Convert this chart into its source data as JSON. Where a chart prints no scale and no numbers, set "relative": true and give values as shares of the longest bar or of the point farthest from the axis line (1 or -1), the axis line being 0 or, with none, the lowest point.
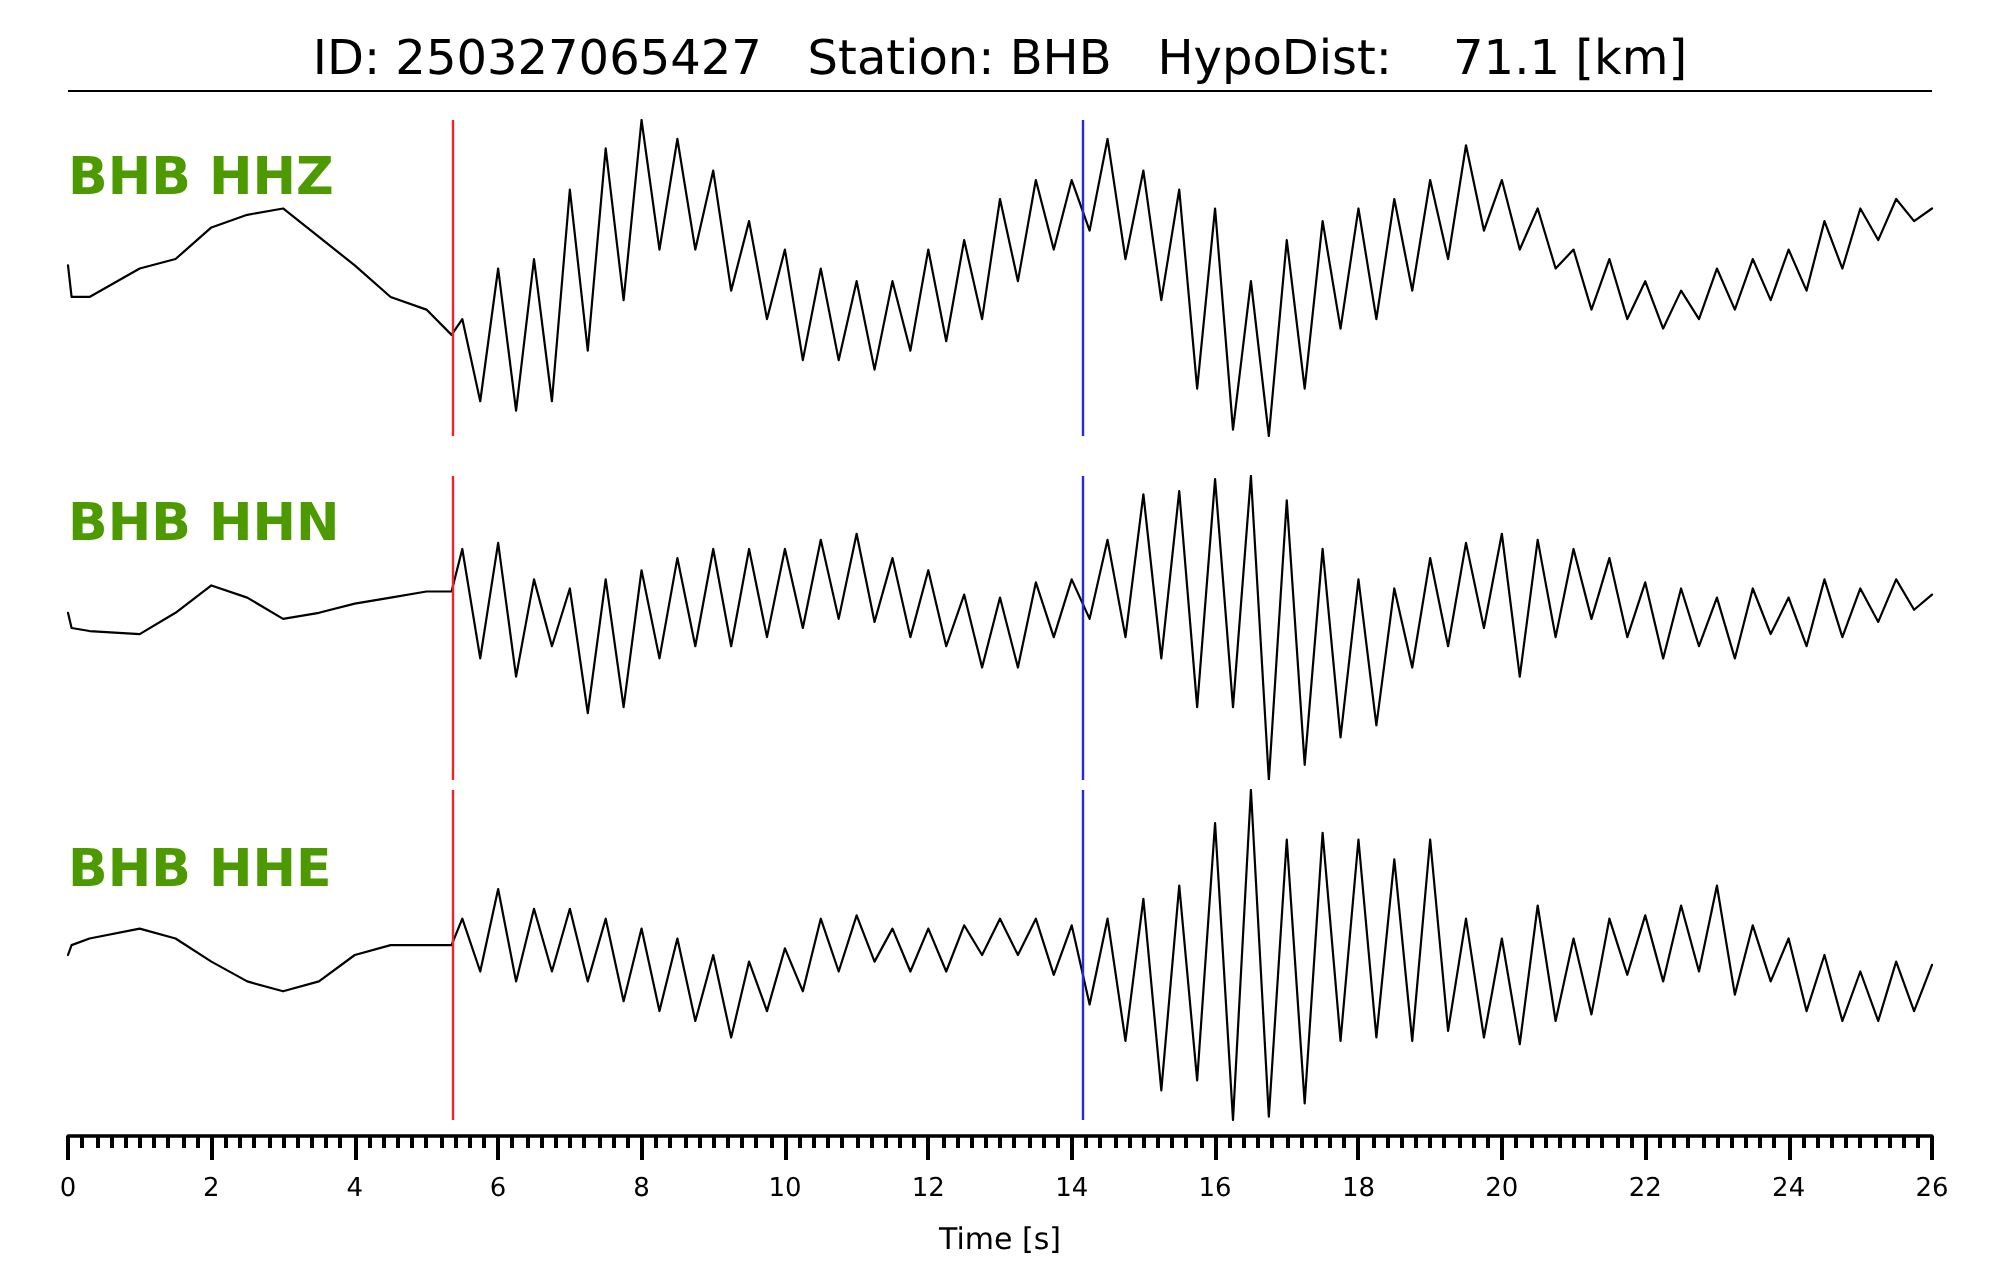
{
  "chart_data": [
    {
      "type": "line",
      "title": "ID: 250327065427   Station: BHB   HypoDist:    71.1 [km]",
      "relative": true,
      "xlim": [
        0,
        26
      ],
      "x": [
        0,
        0.05,
        0.3,
        1,
        1.5,
        2,
        2.5,
        3,
        3.5,
        4,
        4.5,
        5,
        5.35,
        5.5,
        5.75,
        6,
        6.25,
        6.5,
        6.75,
        7,
        7.25,
        7.5,
        7.75,
        8,
        8.25,
        8.5,
        8.75,
        9,
        9.25,
        9.5,
        9.75,
        10,
        10.25,
        10.5,
        10.75,
        11,
        11.25,
        11.5,
        11.75,
        12,
        12.25,
        12.5,
        12.75,
        13,
        13.25,
        13.5,
        13.75,
        14,
        14.25,
        14.5,
        14.75,
        15,
        15.25,
        15.5,
        15.75,
        16,
        16.25,
        16.5,
        16.75,
        17,
        17.25,
        17.5,
        17.75,
        18,
        18.25,
        18.5,
        18.75,
        19,
        19.25,
        19.5,
        19.75,
        20,
        20.25,
        20.5,
        20.75,
        21,
        21.25,
        21.5,
        21.75,
        22,
        22.25,
        22.5,
        22.75,
        23,
        23.25,
        23.5,
        23.75,
        24,
        24.25,
        24.5,
        24.75,
        25,
        25.25,
        25.5,
        25.75,
        26
      ],
      "series": [
        {
          "name": "BHB HHZ",
          "color": "#000000",
          "values": [
            0.54,
            0.44,
            0.44,
            0.53,
            0.56,
            0.66,
            0.7,
            0.72,
            0.63,
            0.54,
            0.44,
            0.4,
            0.32,
            0.37,
            0.11,
            0.53,
            0.08,
            0.56,
            0.11,
            0.78,
            0.27,
            0.91,
            0.43,
            1.0,
            0.59,
            0.94,
            0.59,
            0.84,
            0.46,
            0.68,
            0.37,
            0.59,
            0.24,
            0.53,
            0.24,
            0.49,
            0.21,
            0.49,
            0.27,
            0.59,
            0.3,
            0.62,
            0.37,
            0.75,
            0.49,
            0.81,
            0.59,
            0.81,
            0.65,
            0.94,
            0.56,
            0.84,
            0.43,
            0.78,
            0.15,
            0.72,
            0.02,
            0.49,
            0.0,
            0.62,
            0.15,
            0.68,
            0.34,
            0.72,
            0.37,
            0.75,
            0.46,
            0.81,
            0.56,
            0.92,
            0.65,
            0.81,
            0.59,
            0.72,
            0.53,
            0.59,
            0.4,
            0.56,
            0.37,
            0.49,
            0.34,
            0.46,
            0.37,
            0.53,
            0.4,
            0.56,
            0.43,
            0.59,
            0.46,
            0.68,
            0.53,
            0.72,
            0.62,
            0.75,
            0.68,
            0.72
          ]
        }
      ],
      "ref_lines": [
        {
          "axis": "x",
          "value": 5.36,
          "color": "#e8262b"
        },
        {
          "axis": "x",
          "value": 14.14,
          "color": "#2828e0"
        }
      ]
    },
    {
      "type": "line",
      "relative": true,
      "xlim": [
        0,
        26
      ],
      "x": [
        0,
        0.05,
        0.3,
        1,
        1.5,
        2,
        2.5,
        3,
        3.5,
        4,
        4.5,
        5,
        5.35,
        5.5,
        5.75,
        6,
        6.25,
        6.5,
        6.75,
        7,
        7.25,
        7.5,
        7.75,
        8,
        8.25,
        8.5,
        8.75,
        9,
        9.25,
        9.5,
        9.75,
        10,
        10.25,
        10.5,
        10.75,
        11,
        11.25,
        11.5,
        11.75,
        12,
        12.25,
        12.5,
        12.75,
        13,
        13.25,
        13.5,
        13.75,
        14,
        14.25,
        14.5,
        14.75,
        15,
        15.25,
        15.5,
        15.75,
        16,
        16.25,
        16.5,
        16.75,
        17,
        17.25,
        17.5,
        17.75,
        18,
        18.25,
        18.5,
        18.75,
        19,
        19.25,
        19.5,
        19.75,
        20,
        20.25,
        20.5,
        20.75,
        21,
        21.25,
        21.5,
        21.75,
        22,
        22.25,
        22.5,
        22.75,
        23,
        23.25,
        23.5,
        23.75,
        24,
        24.25,
        24.5,
        24.75,
        25,
        25.25,
        25.5,
        25.75,
        26
      ],
      "series": [
        {
          "name": "BHB HHN",
          "color": "#000000",
          "values": [
            0.55,
            0.5,
            0.49,
            0.48,
            0.55,
            0.64,
            0.6,
            0.53,
            0.55,
            0.58,
            0.6,
            0.62,
            0.62,
            0.76,
            0.4,
            0.78,
            0.34,
            0.66,
            0.44,
            0.63,
            0.22,
            0.66,
            0.24,
            0.69,
            0.4,
            0.73,
            0.44,
            0.76,
            0.44,
            0.76,
            0.47,
            0.76,
            0.5,
            0.79,
            0.53,
            0.81,
            0.52,
            0.73,
            0.47,
            0.69,
            0.44,
            0.61,
            0.37,
            0.6,
            0.37,
            0.65,
            0.47,
            0.66,
            0.53,
            0.79,
            0.47,
            0.94,
            0.4,
            0.95,
            0.24,
            0.99,
            0.24,
            1.0,
            0.0,
            0.92,
            0.05,
            0.76,
            0.14,
            0.66,
            0.18,
            0.63,
            0.37,
            0.73,
            0.44,
            0.78,
            0.5,
            0.81,
            0.34,
            0.79,
            0.47,
            0.76,
            0.53,
            0.73,
            0.47,
            0.65,
            0.4,
            0.63,
            0.44,
            0.6,
            0.4,
            0.63,
            0.48,
            0.6,
            0.44,
            0.66,
            0.47,
            0.63,
            0.52,
            0.66,
            0.56,
            0.61
          ]
        }
      ],
      "ref_lines": [
        {
          "axis": "x",
          "value": 5.36,
          "color": "#e8262b"
        },
        {
          "axis": "x",
          "value": 14.14,
          "color": "#2828e0"
        }
      ]
    },
    {
      "type": "line",
      "xlabel": "Time [s]",
      "relative": true,
      "xlim": [
        0,
        26
      ],
      "x": [
        0,
        0.05,
        0.3,
        1,
        1.5,
        2,
        2.5,
        3,
        3.5,
        4,
        4.5,
        5,
        5.35,
        5.5,
        5.75,
        6,
        6.25,
        6.5,
        6.75,
        7,
        7.25,
        7.5,
        7.75,
        8,
        8.25,
        8.5,
        8.75,
        9,
        9.25,
        9.5,
        9.75,
        10,
        10.25,
        10.5,
        10.75,
        11,
        11.25,
        11.5,
        11.75,
        12,
        12.25,
        12.5,
        12.75,
        13,
        13.25,
        13.5,
        13.75,
        14,
        14.25,
        14.5,
        14.75,
        15,
        15.25,
        15.5,
        15.75,
        16,
        16.25,
        16.5,
        16.75,
        17,
        17.25,
        17.5,
        17.75,
        18,
        18.25,
        18.5,
        18.75,
        19,
        19.25,
        19.5,
        19.75,
        20,
        20.25,
        20.5,
        20.75,
        21,
        21.25,
        21.5,
        21.75,
        22,
        22.25,
        22.5,
        22.75,
        23,
        23.25,
        23.5,
        23.75,
        24,
        24.25,
        24.5,
        24.75,
        25,
        25.25,
        25.5,
        25.75,
        26
      ],
      "series": [
        {
          "name": "BHB HHE",
          "color": "#000000",
          "values": [
            0.5,
            0.53,
            0.55,
            0.58,
            0.55,
            0.48,
            0.42,
            0.39,
            0.42,
            0.5,
            0.53,
            0.53,
            0.53,
            0.61,
            0.45,
            0.7,
            0.42,
            0.64,
            0.45,
            0.64,
            0.42,
            0.61,
            0.36,
            0.58,
            0.33,
            0.55,
            0.3,
            0.5,
            0.25,
            0.48,
            0.33,
            0.52,
            0.39,
            0.61,
            0.45,
            0.62,
            0.48,
            0.58,
            0.45,
            0.58,
            0.45,
            0.59,
            0.5,
            0.61,
            0.5,
            0.61,
            0.44,
            0.59,
            0.35,
            0.61,
            0.24,
            0.67,
            0.09,
            0.71,
            0.12,
            0.9,
            0.0,
            1.0,
            0.01,
            0.85,
            0.05,
            0.87,
            0.24,
            0.85,
            0.25,
            0.79,
            0.24,
            0.85,
            0.27,
            0.61,
            0.25,
            0.55,
            0.23,
            0.65,
            0.3,
            0.55,
            0.32,
            0.61,
            0.44,
            0.62,
            0.42,
            0.65,
            0.45,
            0.71,
            0.38,
            0.59,
            0.42,
            0.55,
            0.33,
            0.5,
            0.3,
            0.45,
            0.3,
            0.48,
            0.33,
            0.47
          ]
        }
      ],
      "ref_lines": [
        {
          "axis": "x",
          "value": 5.36,
          "color": "#e8262b"
        },
        {
          "axis": "x",
          "value": 14.14,
          "color": "#2828e0"
        }
      ],
      "xticks": [
        0,
        {
          "value": 0.2,
          "label": null
        },
        {
          "value": 0.4,
          "label": null
        },
        {
          "value": 0.6,
          "label": null
        },
        {
          "value": 0.8,
          "label": null
        },
        {
          "value": 1,
          "label": null
        },
        {
          "value": 1.2,
          "label": null
        },
        {
          "value": 1.4,
          "label": null
        },
        {
          "value": 1.6,
          "label": null
        },
        {
          "value": 1.8,
          "label": null
        },
        2,
        {
          "value": 2.2,
          "label": null
        },
        {
          "value": 2.4,
          "label": null
        },
        {
          "value": 2.6,
          "label": null
        },
        {
          "value": 2.8,
          "label": null
        },
        {
          "value": 3,
          "label": null
        },
        {
          "value": 3.2,
          "label": null
        },
        {
          "value": 3.4,
          "label": null
        },
        {
          "value": 3.6,
          "label": null
        },
        {
          "value": 3.8,
          "label": null
        },
        4,
        {
          "value": 4.2,
          "label": null
        },
        {
          "value": 4.4,
          "label": null
        },
        {
          "value": 4.6,
          "label": null
        },
        {
          "value": 4.8,
          "label": null
        },
        {
          "value": 5,
          "label": null
        },
        {
          "value": 5.2,
          "label": null
        },
        {
          "value": 5.4,
          "label": null
        },
        {
          "value": 5.6,
          "label": null
        },
        {
          "value": 5.8,
          "label": null
        },
        6,
        {
          "value": 6.2,
          "label": null
        },
        {
          "value": 6.4,
          "label": null
        },
        {
          "value": 6.6,
          "label": null
        },
        {
          "value": 6.8,
          "label": null
        },
        {
          "value": 7,
          "label": null
        },
        {
          "value": 7.2,
          "label": null
        },
        {
          "value": 7.4,
          "label": null
        },
        {
          "value": 7.6,
          "label": null
        },
        {
          "value": 7.8,
          "label": null
        },
        8,
        {
          "value": 8.2,
          "label": null
        },
        {
          "value": 8.4,
          "label": null
        },
        {
          "value": 8.6,
          "label": null
        },
        {
          "value": 8.8,
          "label": null
        },
        {
          "value": 9,
          "label": null
        },
        {
          "value": 9.2,
          "label": null
        },
        {
          "value": 9.4,
          "label": null
        },
        {
          "value": 9.6,
          "label": null
        },
        {
          "value": 9.8,
          "label": null
        },
        10,
        {
          "value": 10.2,
          "label": null
        },
        {
          "value": 10.4,
          "label": null
        },
        {
          "value": 10.6,
          "label": null
        },
        {
          "value": 10.8,
          "label": null
        },
        {
          "value": 11,
          "label": null
        },
        {
          "value": 11.2,
          "label": null
        },
        {
          "value": 11.4,
          "label": null
        },
        {
          "value": 11.6,
          "label": null
        },
        {
          "value": 11.8,
          "label": null
        },
        12,
        {
          "value": 12.2,
          "label": null
        },
        {
          "value": 12.4,
          "label": null
        },
        {
          "value": 12.6,
          "label": null
        },
        {
          "value": 12.8,
          "label": null
        },
        {
          "value": 13,
          "label": null
        },
        {
          "value": 13.2,
          "label": null
        },
        {
          "value": 13.4,
          "label": null
        },
        {
          "value": 13.6,
          "label": null
        },
        {
          "value": 13.8,
          "label": null
        },
        14,
        {
          "value": 14.2,
          "label": null
        },
        {
          "value": 14.4,
          "label": null
        },
        {
          "value": 14.6,
          "label": null
        },
        {
          "value": 14.8,
          "label": null
        },
        {
          "value": 15,
          "label": null
        },
        {
          "value": 15.2,
          "label": null
        },
        {
          "value": 15.4,
          "label": null
        },
        {
          "value": 15.6,
          "label": null
        },
        {
          "value": 15.8,
          "label": null
        },
        16,
        {
          "value": 16.2,
          "label": null
        },
        {
          "value": 16.4,
          "label": null
        },
        {
          "value": 16.6,
          "label": null
        },
        {
          "value": 16.8,
          "label": null
        },
        {
          "value": 17,
          "label": null
        },
        {
          "value": 17.2,
          "label": null
        },
        {
          "value": 17.4,
          "label": null
        },
        {
          "value": 17.6,
          "label": null
        },
        {
          "value": 17.8,
          "label": null
        },
        18,
        {
          "value": 18.2,
          "label": null
        },
        {
          "value": 18.4,
          "label": null
        },
        {
          "value": 18.6,
          "label": null
        },
        {
          "value": 18.8,
          "label": null
        },
        {
          "value": 19,
          "label": null
        },
        {
          "value": 19.2,
          "label": null
        },
        {
          "value": 19.4,
          "label": null
        },
        {
          "value": 19.6,
          "label": null
        },
        {
          "value": 19.8,
          "label": null
        },
        20,
        {
          "value": 20.2,
          "label": null
        },
        {
          "value": 20.4,
          "label": null
        },
        {
          "value": 20.6,
          "label": null
        },
        {
          "value": 20.8,
          "label": null
        },
        {
          "value": 21,
          "label": null
        },
        {
          "value": 21.2,
          "label": null
        },
        {
          "value": 21.4,
          "label": null
        },
        {
          "value": 21.6,
          "label": null
        },
        {
          "value": 21.8,
          "label": null
        },
        22,
        {
          "value": 22.2,
          "label": null
        },
        {
          "value": 22.4,
          "label": null
        },
        {
          "value": 22.6,
          "label": null
        },
        {
          "value": 22.8,
          "label": null
        },
        {
          "value": 23,
          "label": null
        },
        {
          "value": 23.2,
          "label": null
        },
        {
          "value": 23.4,
          "label": null
        },
        {
          "value": 23.6,
          "label": null
        },
        {
          "value": 23.8,
          "label": null
        },
        24,
        {
          "value": 24.2,
          "label": null
        },
        {
          "value": 24.4,
          "label": null
        },
        {
          "value": 24.6,
          "label": null
        },
        {
          "value": 24.8,
          "label": null
        },
        {
          "value": 25,
          "label": null
        },
        {
          "value": 25.2,
          "label": null
        },
        {
          "value": 25.4,
          "label": null
        },
        {
          "value": 25.6,
          "label": null
        },
        {
          "value": 25.8,
          "label": null
        },
        26
      ]
    }
  ]
}
